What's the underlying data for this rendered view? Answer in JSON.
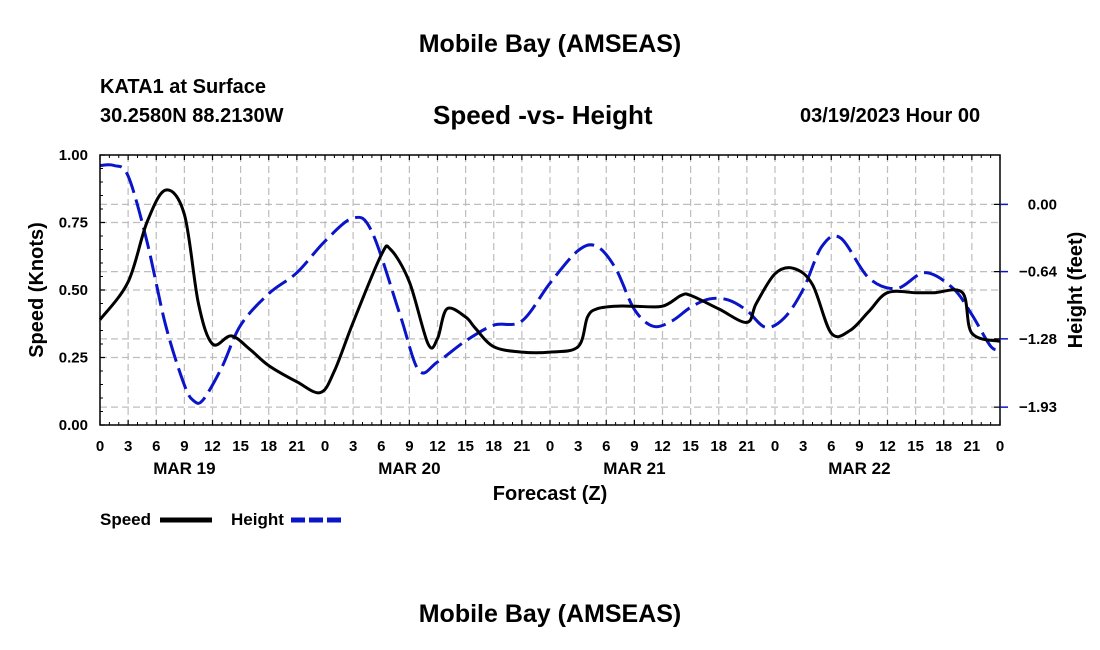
{
  "header": {
    "title": "Mobile Bay (AMSEAS)",
    "station": "KATA1 at Surface",
    "coordinates": "30.2580N  88.2130W",
    "subtitle": "Speed -vs- Height",
    "datetime": "03/19/2023 Hour 00"
  },
  "footer": {
    "title": "Mobile Bay (AMSEAS)"
  },
  "chart_data": {
    "type": "line",
    "title": "Speed -vs- Height",
    "xlabel": "Forecast (Z)",
    "ylabel": "Speed (Knots)",
    "y2label": "Height (feet)",
    "xlim": [
      0,
      96
    ],
    "ylim": [
      0,
      1.0
    ],
    "y2lim": [
      -2.1,
      0.47
    ],
    "x_tick_labels": [
      "0",
      "3",
      "6",
      "9",
      "12",
      "15",
      "18",
      "21",
      "0",
      "3",
      "6",
      "9",
      "12",
      "15",
      "18",
      "21",
      "0",
      "3",
      "6",
      "9",
      "12",
      "15",
      "18",
      "21",
      "0",
      "3",
      "6",
      "9",
      "12",
      "15",
      "18",
      "21",
      "0"
    ],
    "day_labels": [
      {
        "x": 9,
        "label": "MAR 19"
      },
      {
        "x": 33,
        "label": "MAR 20"
      },
      {
        "x": 57,
        "label": "MAR 21"
      },
      {
        "x": 81,
        "label": "MAR 22"
      }
    ],
    "y_ticks": [
      0.0,
      0.25,
      0.5,
      0.75,
      1.0
    ],
    "y_tick_labels": [
      "0.00",
      "0.25",
      "0.50",
      "0.75",
      "1.00"
    ],
    "y2_ticks": [
      0.0,
      -0.64,
      -1.28,
      -1.93
    ],
    "y2_tick_labels": [
      "0.00",
      "−0.64",
      "−1.28",
      "−1.93"
    ],
    "grid": true,
    "legend": [
      "Speed",
      "Height"
    ],
    "series": [
      {
        "name": "Speed",
        "axis": "left",
        "color": "#000000",
        "dash": "solid",
        "x": [
          0,
          3,
          5,
          7,
          9,
          10.5,
          12,
          14,
          16,
          18,
          21,
          23.5,
          25,
          27,
          30,
          31,
          33,
          35,
          36,
          37,
          39,
          40,
          42,
          45,
          48,
          51,
          52,
          53,
          55,
          57,
          60,
          62,
          63,
          66,
          69,
          70,
          72,
          74,
          76,
          78,
          80,
          82,
          84,
          87,
          89,
          92,
          93,
          96
        ],
        "values": [
          0.39,
          0.53,
          0.75,
          0.87,
          0.78,
          0.45,
          0.3,
          0.33,
          0.28,
          0.22,
          0.16,
          0.12,
          0.2,
          0.38,
          0.63,
          0.65,
          0.53,
          0.3,
          0.32,
          0.43,
          0.4,
          0.36,
          0.29,
          0.27,
          0.27,
          0.29,
          0.4,
          0.43,
          0.44,
          0.44,
          0.44,
          0.48,
          0.48,
          0.43,
          0.38,
          0.45,
          0.56,
          0.58,
          0.52,
          0.34,
          0.35,
          0.42,
          0.49,
          0.49,
          0.49,
          0.49,
          0.34,
          0.31
        ]
      },
      {
        "name": "Height",
        "axis": "right",
        "color": "#0a14c8",
        "dash": "dashed",
        "x": [
          0,
          1.5,
          3,
          5,
          7,
          9,
          10,
          11,
          13,
          15,
          18,
          21,
          24,
          27,
          29,
          32,
          34,
          36,
          39,
          42,
          45,
          48,
          51,
          53,
          55,
          57,
          59,
          61,
          63,
          65,
          67,
          69,
          71,
          73,
          75,
          77,
          79,
          82,
          85,
          88,
          91,
          93,
          95,
          96
        ],
        "values": [
          0.37,
          0.37,
          0.27,
          -0.35,
          -1.15,
          -1.72,
          -1.87,
          -1.86,
          -1.55,
          -1.15,
          -0.85,
          -0.65,
          -0.35,
          -0.13,
          -0.26,
          -1.05,
          -1.58,
          -1.5,
          -1.3,
          -1.15,
          -1.11,
          -0.75,
          -0.44,
          -0.4,
          -0.61,
          -1.0,
          -1.16,
          -1.11,
          -0.98,
          -0.9,
          -0.91,
          -1.01,
          -1.17,
          -1.08,
          -0.81,
          -0.4,
          -0.32,
          -0.7,
          -0.8,
          -0.65,
          -0.8,
          -1.05,
          -1.35,
          -1.38
        ]
      }
    ]
  }
}
